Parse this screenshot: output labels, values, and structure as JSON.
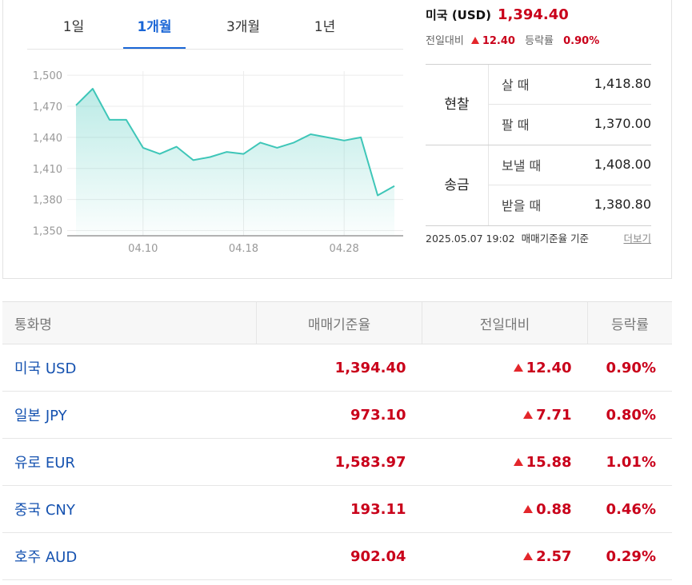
{
  "tabs": [
    {
      "label": "1일",
      "active": false
    },
    {
      "label": "1개월",
      "active": true
    },
    {
      "label": "3개월",
      "active": false
    },
    {
      "label": "1년",
      "active": false
    }
  ],
  "summary": {
    "country": "미국 (USD)",
    "rate": "1,394.40",
    "change_label": "전일대비",
    "change": "12.40",
    "pct_label": "등락률",
    "pct": "0.90%"
  },
  "rate_table": {
    "groups": [
      {
        "label": "현찰",
        "rows": [
          {
            "label": "살 때",
            "value": "1,418.80"
          },
          {
            "label": "팔 때",
            "value": "1,370.00"
          }
        ]
      },
      {
        "label": "송금",
        "rows": [
          {
            "label": "보낼 때",
            "value": "1,408.00"
          },
          {
            "label": "받을 때",
            "value": "1,380.80"
          }
        ]
      }
    ],
    "footer_time": "2025.05.07 19:02",
    "footer_basis": "매매기준율 기준",
    "more_label": "더보기"
  },
  "chart_data": {
    "type": "area",
    "y_ticks": [
      "1,500",
      "1,470",
      "1,440",
      "1,410",
      "1,380",
      "1,350"
    ],
    "y_tick_values": [
      1500,
      1470,
      1440,
      1410,
      1380,
      1350
    ],
    "ylim": [
      1345,
      1504
    ],
    "x_ticks": [
      "04.10",
      "04.18",
      "04.28"
    ],
    "x_tick_index": [
      4,
      10,
      16
    ],
    "values": [
      1471,
      1487,
      1457,
      1457,
      1430,
      1424,
      1431,
      1418,
      1421,
      1426,
      1424,
      1435,
      1430,
      1435,
      1443,
      1440,
      1437,
      1440,
      1384,
      1393
    ],
    "line_color": "#3ec6b8",
    "grid": true
  },
  "list": {
    "headers": [
      "통화명",
      "매매기준율",
      "전일대비",
      "등락률"
    ],
    "rows": [
      {
        "name": "미국 USD",
        "rate": "1,394.40",
        "change": "12.40",
        "pct": "0.90%"
      },
      {
        "name": "일본 JPY",
        "rate": "973.10",
        "change": "7.71",
        "pct": "0.80%"
      },
      {
        "name": "유로 EUR",
        "rate": "1,583.97",
        "change": "15.88",
        "pct": "1.01%"
      },
      {
        "name": "중국 CNY",
        "rate": "193.11",
        "change": "0.88",
        "pct": "0.46%"
      },
      {
        "name": "호주 AUD",
        "rate": "902.04",
        "change": "2.57",
        "pct": "0.29%"
      }
    ]
  }
}
